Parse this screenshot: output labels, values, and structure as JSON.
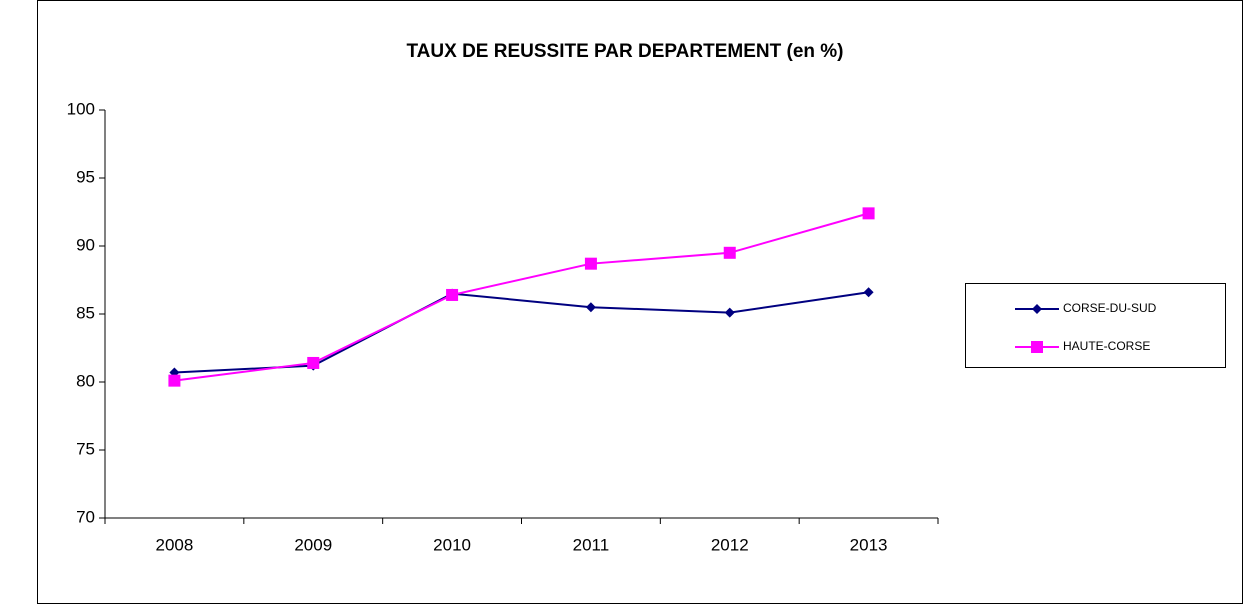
{
  "chart_data": {
    "type": "line",
    "title": "TAUX DE REUSSITE PAR DEPARTEMENT (en %)",
    "categories": [
      "2008",
      "2009",
      "2010",
      "2011",
      "2012",
      "2013"
    ],
    "series": [
      {
        "name": "CORSE-DU-SUD",
        "color": "#000080",
        "marker": "diamond",
        "values": [
          80.7,
          81.2,
          86.5,
          85.5,
          85.1,
          86.6
        ]
      },
      {
        "name": "HAUTE-CORSE",
        "color": "#ff00ff",
        "marker": "square",
        "values": [
          80.1,
          81.4,
          86.4,
          88.7,
          89.5,
          92.4
        ]
      }
    ],
    "ylim": [
      70,
      100
    ],
    "yticks": [
      70,
      75,
      80,
      85,
      90,
      95,
      100
    ],
    "grid": false,
    "legend": "right"
  }
}
